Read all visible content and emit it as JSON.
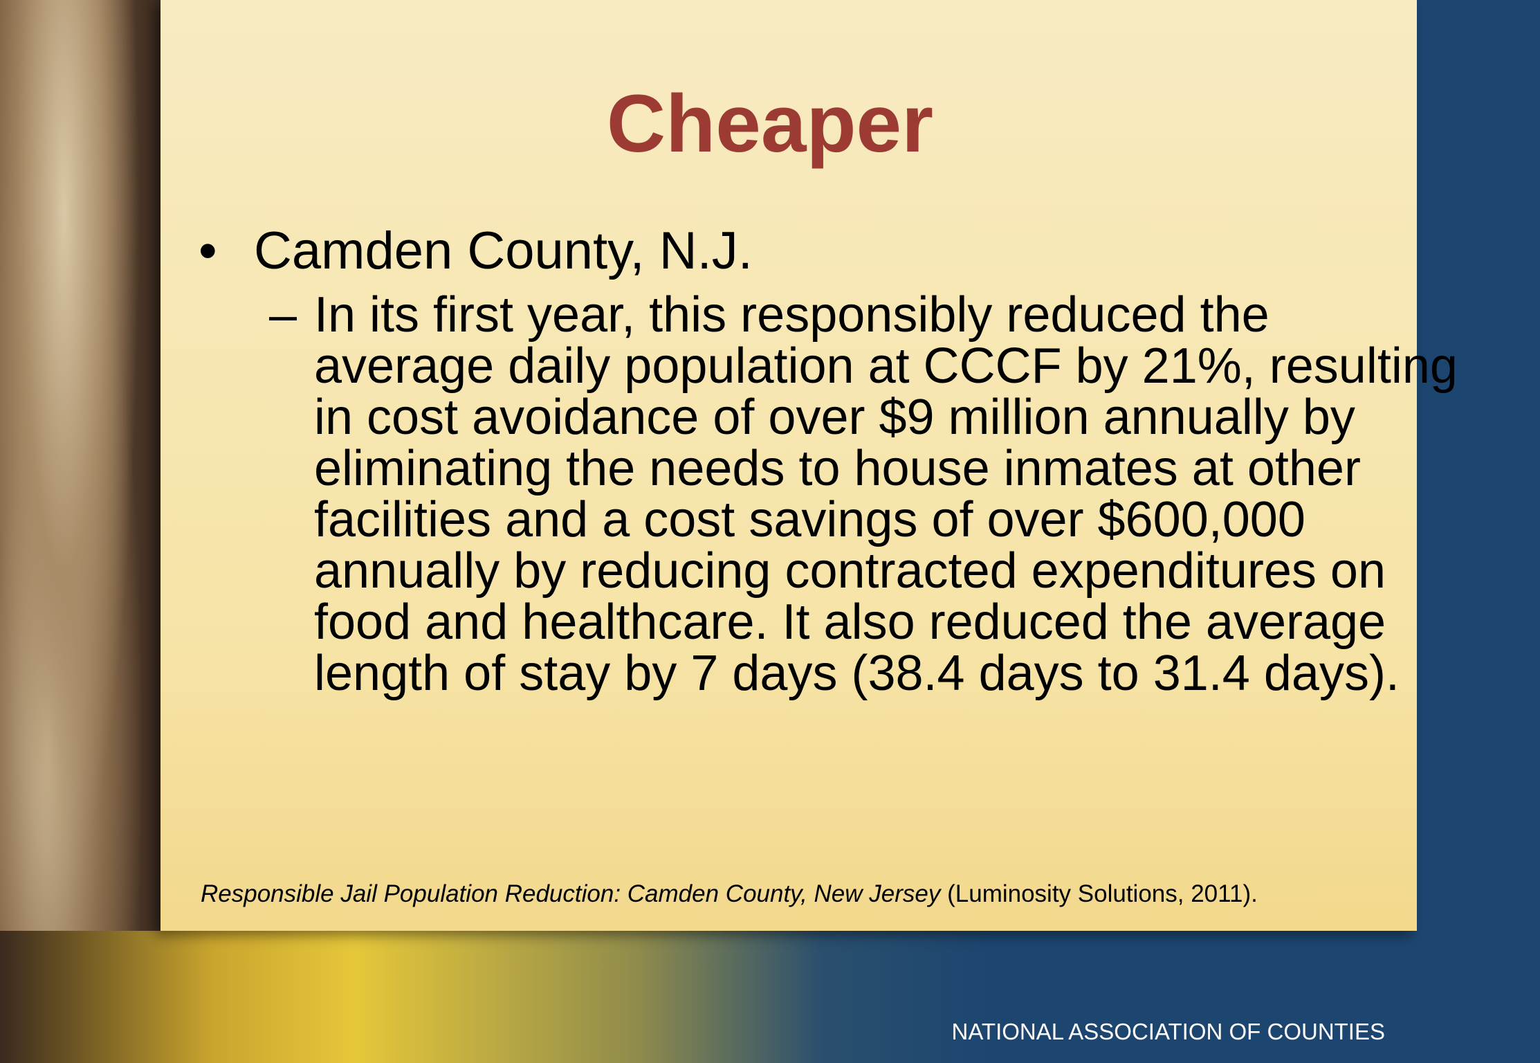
{
  "title": "Cheaper",
  "bullet": {
    "text": "Camden County, N.J.",
    "sub_bullet": {
      "lines": [
        "In its first year, this responsibly reduced the",
        "average daily population at CCCF by 21%, resulting",
        "in cost avoidance of over $9 million annually by",
        "eliminating the needs to house inmates at other",
        "facilities and a cost savings of over $600,000",
        "annually by reducing contracted expenditures on",
        "food and healthcare.  It also reduced the average",
        "length of stay by 7 days (38.4 days to 31.4 days)."
      ]
    }
  },
  "citation": {
    "title": "Responsible Jail Population Reduction: Camden County, New Jersey",
    "source": "(Luminosity Solutions, 2011)."
  },
  "footer": "NATIONAL ASSOCIATION OF COUNTIES"
}
